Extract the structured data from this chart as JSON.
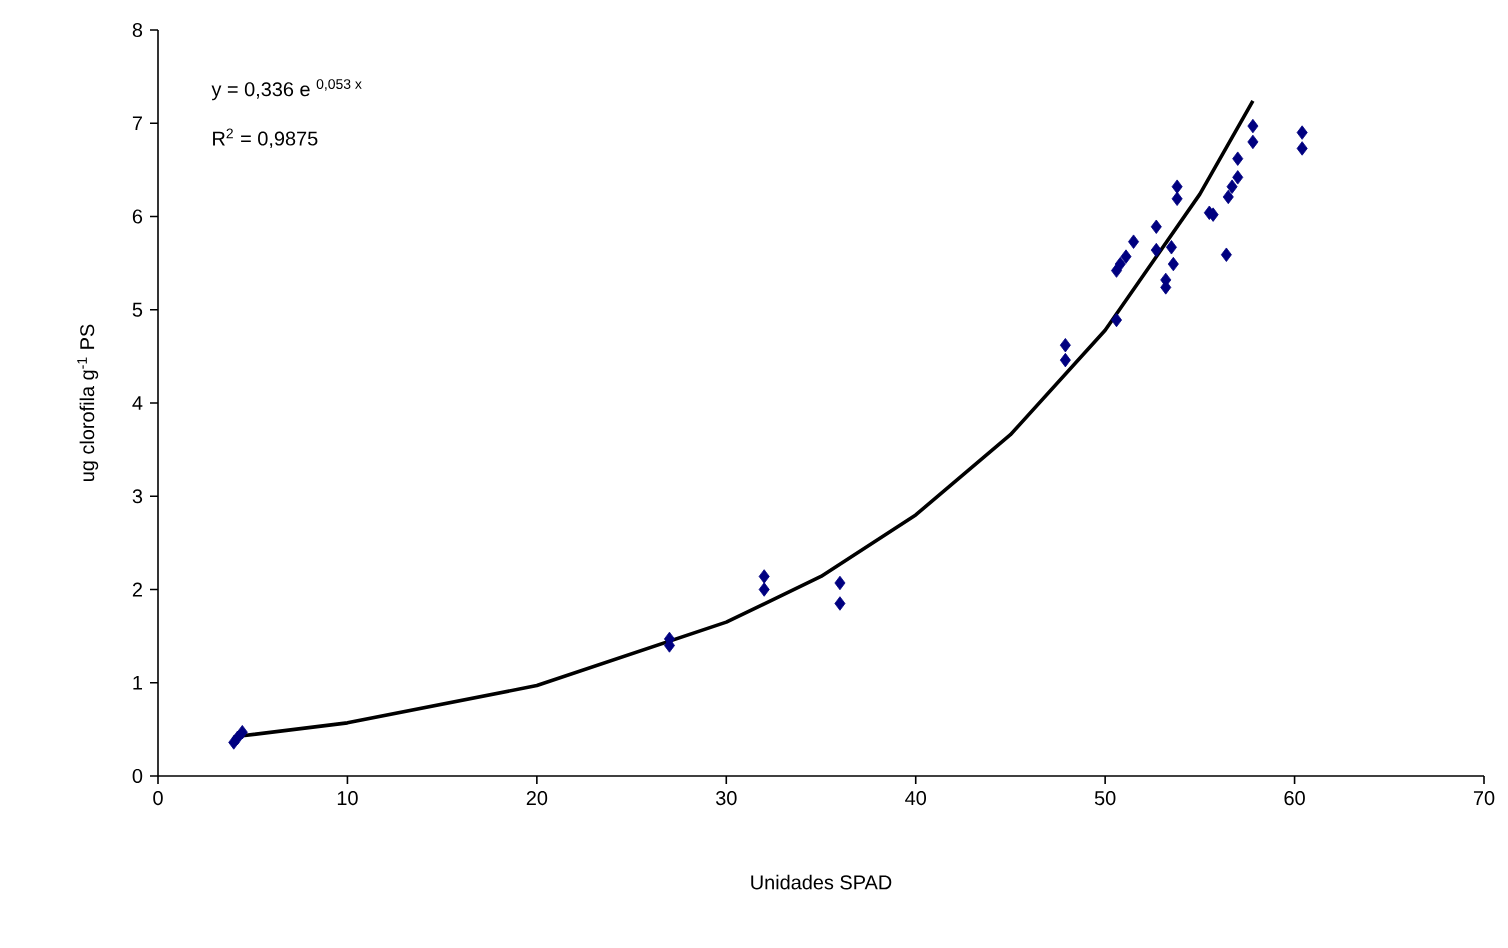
{
  "chart_data": {
    "type": "scatter",
    "xlabel": "Unidades SPAD",
    "ylabel": "ug clorofila g$^{-1}$ PS",
    "annotations": [
      "y = 0,336 e $^{0,053 x}$",
      "R$^{2}$ = 0,9875"
    ],
    "xlim": [
      0,
      70
    ],
    "ylim": [
      0,
      8
    ],
    "xticks": [
      0,
      10,
      20,
      30,
      40,
      50,
      60,
      70
    ],
    "yticks": [
      0,
      1,
      2,
      3,
      4,
      5,
      6,
      7,
      8
    ],
    "series": [
      {
        "marker": "diamond",
        "color": "#000080",
        "x": [
          4.0,
          4.2,
          4.45,
          27.0,
          27.0,
          32.0,
          32.0,
          36.0,
          36.0,
          47.9,
          47.9,
          50.6,
          50.6,
          50.8,
          51.1,
          51.5,
          52.7,
          52.7,
          53.5,
          53.6,
          53.2,
          53.2,
          53.8,
          53.8,
          55.5,
          55.7,
          56.4,
          56.5,
          56.7,
          57.0,
          57.0,
          57.8,
          57.8,
          60.4,
          60.4
        ],
        "values": [
          0.36,
          0.41,
          0.47,
          1.47,
          1.4,
          2.14,
          2.0,
          2.07,
          1.85,
          4.62,
          4.46,
          4.89,
          5.42,
          5.49,
          5.57,
          5.73,
          5.89,
          5.64,
          5.67,
          5.49,
          5.32,
          5.24,
          6.32,
          6.19,
          6.04,
          6.02,
          5.59,
          6.21,
          6.32,
          6.42,
          6.62,
          6.97,
          6.8,
          6.9,
          6.73
        ]
      },
      {
        "type": "line",
        "marker": "none",
        "color": "#000000",
        "x": [
          4,
          10,
          20,
          30,
          35,
          40,
          45,
          50,
          55,
          57.8
        ],
        "values": [
          0.42,
          0.57,
          0.97,
          1.65,
          2.14,
          2.8,
          3.66,
          4.78,
          6.24,
          7.24
        ]
      }
    ]
  }
}
